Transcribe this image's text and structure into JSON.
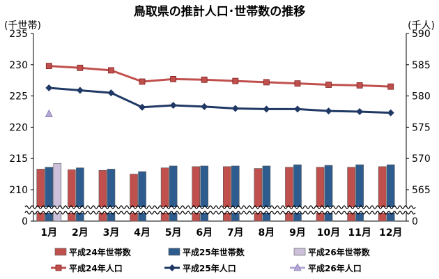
{
  "chart_data": {
    "type": "bar",
    "title": "鳥取県の推計人口･世帯数の推移",
    "left_unit": "(千世帯)",
    "right_unit": "(千人)",
    "categories": [
      "1月",
      "2月",
      "3月",
      "4月",
      "5月",
      "6月",
      "7月",
      "8月",
      "9月",
      "10月",
      "11月",
      "12月"
    ],
    "left_ticks": [
      "235",
      "230",
      "225",
      "220",
      "215",
      "210",
      "0"
    ],
    "right_ticks": [
      "590",
      "585",
      "580",
      "575",
      "570",
      "565",
      "0"
    ],
    "left_axis_range": [
      205,
      235
    ],
    "right_axis_range": [
      560,
      590
    ],
    "axis_break": true,
    "grid": false,
    "legend_position": "bottom",
    "series": [
      {
        "name": "平成24年世帯数",
        "type": "bar",
        "axis": "left",
        "color": "#c0504d",
        "values": [
          213.3,
          213.2,
          213.1,
          212.5,
          213.5,
          213.7,
          213.7,
          213.4,
          213.6,
          213.6,
          213.6,
          213.7
        ]
      },
      {
        "name": "平成25年世帯数",
        "type": "bar",
        "axis": "left",
        "color": "#2e5c8f",
        "values": [
          213.6,
          213.5,
          213.3,
          212.9,
          213.8,
          213.8,
          213.8,
          213.8,
          214.0,
          213.9,
          214.0,
          214.0
        ]
      },
      {
        "name": "平成26年世帯数",
        "type": "bar",
        "axis": "left",
        "color": "#ccc0da",
        "values": [
          214.2,
          null,
          null,
          null,
          null,
          null,
          null,
          null,
          null,
          null,
          null,
          null
        ]
      },
      {
        "name": "平成24年人口",
        "type": "line",
        "axis": "right",
        "color": "#c0504d",
        "marker": "square",
        "values": [
          584.8,
          584.5,
          584.1,
          582.3,
          582.7,
          582.6,
          582.4,
          582.2,
          582.0,
          581.8,
          581.7,
          581.5
        ]
      },
      {
        "name": "平成25年人口",
        "type": "line",
        "axis": "right",
        "color": "#1f3864",
        "marker": "diamond",
        "values": [
          581.3,
          580.9,
          580.5,
          578.2,
          578.5,
          578.3,
          578.0,
          577.9,
          577.9,
          577.6,
          577.5,
          577.3
        ]
      },
      {
        "name": "平成26年人口",
        "type": "line",
        "axis": "right",
        "color": "#b4a7d6",
        "marker": "triangle",
        "values": [
          577.1,
          null,
          null,
          null,
          null,
          null,
          null,
          null,
          null,
          null,
          null,
          null
        ]
      }
    ]
  }
}
